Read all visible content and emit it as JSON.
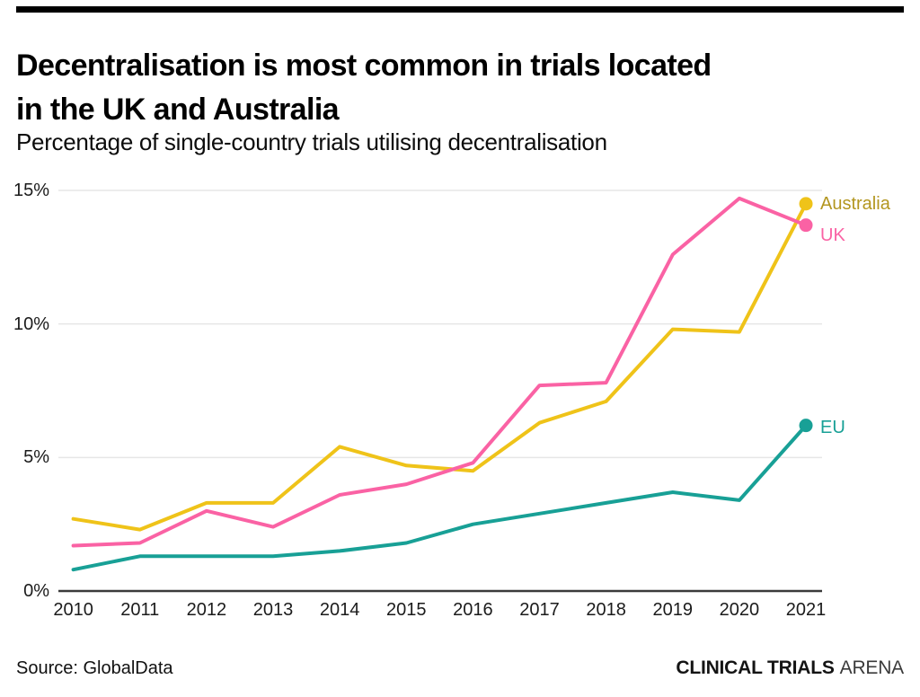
{
  "header": {
    "title": "Decentralisation is most common in trials located\nin the UK and Australia",
    "subtitle": "Percentage of single-country trials utilising decentralisation"
  },
  "footer": {
    "source": "Source: GlobalData",
    "brand_bold": "CLINICAL TRIALS",
    "brand_light": "ARENA"
  },
  "colors": {
    "top_bar": "#000000",
    "axis": "#3a3a3a",
    "gridline": "#e6e6e6",
    "tick_text": "#1b1b1b"
  },
  "chart_data": {
    "type": "line",
    "title": "Decentralisation is most common in trials located in the UK and Australia",
    "subtitle": "Percentage of single-country trials utilising decentralisation",
    "x": [
      "2010",
      "2011",
      "2012",
      "2013",
      "2014",
      "2015",
      "2016",
      "2017",
      "2018",
      "2019",
      "2020",
      "2021"
    ],
    "series": [
      {
        "name": "Australia",
        "color": "#EFC319",
        "label_color": "#B3961F",
        "values": [
          2.7,
          2.3,
          3.3,
          3.3,
          5.4,
          4.7,
          4.5,
          6.3,
          7.1,
          9.8,
          9.7,
          14.5
        ]
      },
      {
        "name": "UK",
        "color": "#FA62A4",
        "label_color": "#FA62A4",
        "values": [
          1.7,
          1.8,
          3.0,
          2.4,
          3.6,
          4.0,
          4.8,
          7.7,
          7.8,
          12.6,
          14.7,
          13.7
        ]
      },
      {
        "name": "EU",
        "color": "#18A096",
        "label_color": "#18A096",
        "values": [
          0.8,
          1.3,
          1.3,
          1.3,
          1.5,
          1.8,
          2.5,
          2.9,
          3.3,
          3.7,
          3.4,
          6.2
        ]
      }
    ],
    "yticks": [
      {
        "value": 0,
        "label": "0%"
      },
      {
        "value": 5,
        "label": "5%"
      },
      {
        "value": 10,
        "label": "10%"
      },
      {
        "value": 15,
        "label": "15%"
      }
    ],
    "ylim": [
      0,
      15
    ],
    "grid": true,
    "legend": "end-of-line labels with dot markers"
  }
}
